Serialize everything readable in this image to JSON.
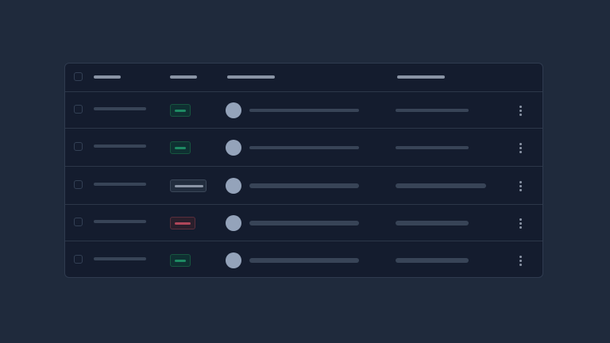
{
  "colors": {
    "background": "#1f2a3c",
    "table": "#141c2e",
    "success": "#1e8a63",
    "danger": "#b0475a",
    "neutral": "#8a94a5",
    "avatar": "#94a3ba"
  },
  "table": {
    "header": {
      "loading": true
    },
    "rows": [
      {
        "status": "success",
        "loading": true
      },
      {
        "status": "success",
        "loading": true
      },
      {
        "status": "neutral",
        "loading": true
      },
      {
        "status": "danger",
        "loading": true
      },
      {
        "status": "success",
        "loading": true
      }
    ]
  },
  "icons": {
    "row_menu": "kebab-vertical-icon",
    "select": "checkbox-icon"
  }
}
